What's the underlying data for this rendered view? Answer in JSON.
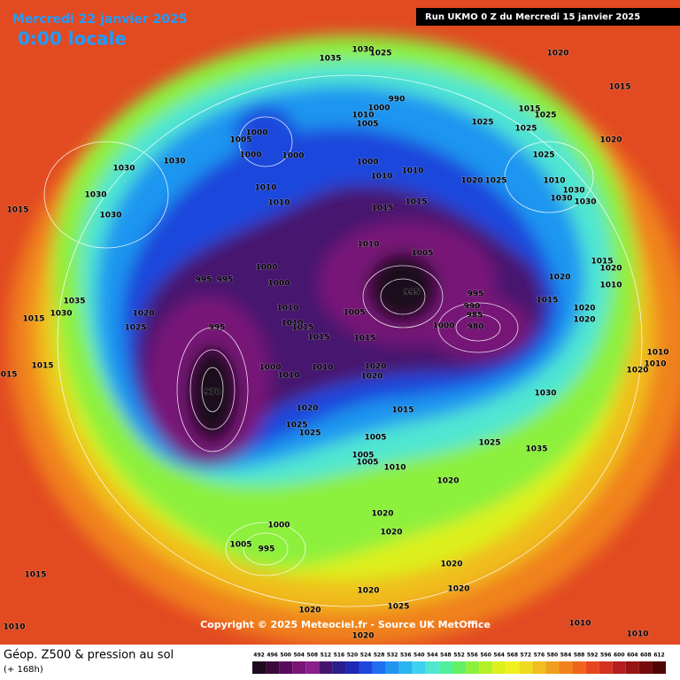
{
  "header": {
    "date": "Mercredi 22 janvier 2025",
    "time": "0:00 locale",
    "run": "Run UKMO 0 Z du Mercredi 15 janvier 2025"
  },
  "footer": {
    "title": "Géop. Z500 & pression au sol",
    "lead": "(+ 168h)",
    "copyright": "Copyright © 2025 Meteociel.fr - Source UK MetOffice"
  },
  "scale": {
    "levels": [
      492,
      496,
      500,
      504,
      508,
      512,
      516,
      520,
      524,
      528,
      532,
      536,
      540,
      544,
      548,
      552,
      556,
      560,
      564,
      568,
      572,
      576,
      580,
      584,
      588,
      592,
      596,
      600,
      604,
      608,
      612
    ],
    "colors": [
      "#1e0a1e",
      "#3a0a3a",
      "#5a0a5a",
      "#781478",
      "#8a1e8a",
      "#46146e",
      "#281e8c",
      "#1e28b4",
      "#1e46dc",
      "#1e6ef0",
      "#1e96f0",
      "#28b4f0",
      "#3cd2f0",
      "#50e6d2",
      "#50f0a0",
      "#64f064",
      "#8cf03c",
      "#b4f028",
      "#dcf01e",
      "#f0f01e",
      "#f0dc1e",
      "#f0be1e",
      "#f0a01e",
      "#f0821e",
      "#f0641e",
      "#e6461e",
      "#d2321e",
      "#b41e1e",
      "#961414",
      "#780a0a",
      "#500505"
    ]
  },
  "isobar_labels": [
    "1035",
    "1030",
    "1025",
    "1020",
    "1015",
    "1030",
    "1030",
    "1030",
    "1030",
    "1015",
    "1000",
    "1005",
    "1000",
    "1000",
    "990",
    "1000",
    "1010",
    "1005",
    "1025",
    "1015",
    "1025",
    "1025",
    "1020",
    "1025",
    "1000",
    "1010",
    "1010",
    "1010",
    "1030",
    "1030",
    "1030",
    "1020",
    "1025",
    "1010",
    "1010",
    "1015",
    "1015",
    "1010",
    "1005",
    "1000",
    "995",
    "995",
    "1000",
    "995",
    "995",
    "990",
    "985",
    "980",
    "1000",
    "1005",
    "1010",
    "1010",
    "1015",
    "1015",
    "1015",
    "995",
    "1035",
    "1030",
    "1020",
    "1025",
    "1015",
    "1015",
    "1015",
    "1010",
    "1010",
    "1020",
    "1020",
    "1020",
    "1020",
    "1020",
    "1015",
    "1015",
    "1010",
    "1010",
    "1000",
    "1010",
    "1020",
    "1020",
    "1030",
    "1015",
    "1020",
    "1025",
    "1025",
    "1005",
    "1025",
    "1035",
    "1005",
    "1005",
    "1010",
    "1020",
    "970",
    "1000",
    "1005",
    "995",
    "1015",
    "1020",
    "1020",
    "1020",
    "1020",
    "1020",
    "1020",
    "1025",
    "1010",
    "1010",
    "1010",
    "1020"
  ]
}
